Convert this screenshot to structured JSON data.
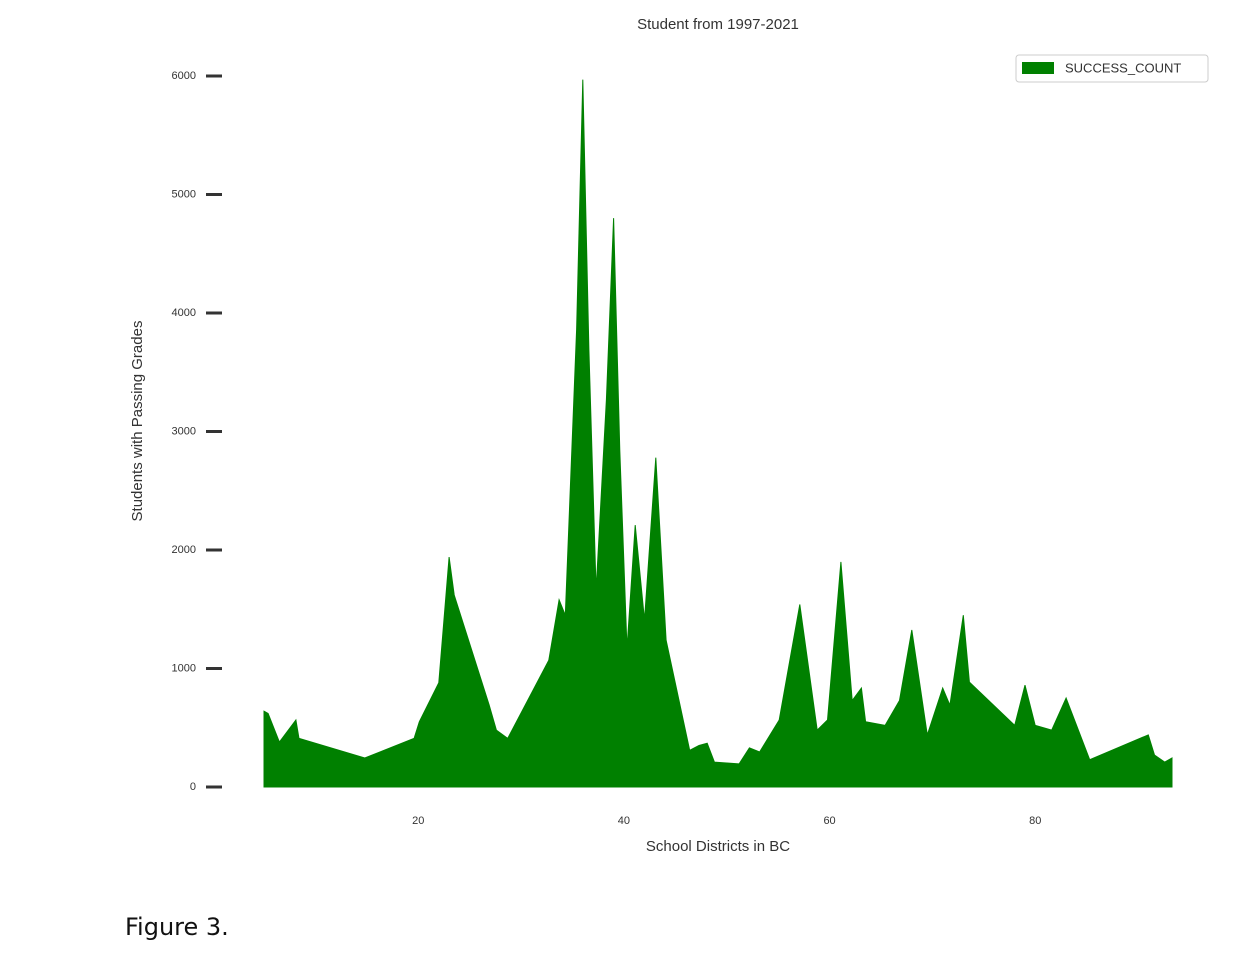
{
  "chart_data": {
    "type": "area",
    "title": "Student from 1997-2021",
    "xlabel": "School Districts in BC",
    "ylabel": "Students with Passing Grades",
    "x": [
      5,
      5.4,
      6.5,
      8.1,
      8.4,
      14.8,
      19.6,
      20.1,
      22,
      23,
      23.5,
      26.9,
      27.6,
      28.7,
      32.7,
      33.7,
      34.3,
      35.4,
      36,
      36.6,
      37.3,
      38.3,
      39,
      39.6,
      40.3,
      41.1,
      42,
      43.1,
      44.1,
      46.4,
      47.3,
      48.1,
      48.8,
      51.2,
      52.2,
      53.2,
      55.1,
      57.1,
      58.8,
      59.8,
      61.1,
      62.2,
      63.1,
      63.5,
      65.4,
      66.8,
      68,
      69.5,
      71,
      71.7,
      73,
      73.6,
      78,
      79,
      80,
      81.6,
      83,
      85.3,
      91,
      91.6,
      92.6,
      93.3
    ],
    "series": [
      {
        "name": "SUCCESS_COUNT",
        "color": "#008000",
        "values": [
          640,
          620,
          380,
          565,
          410,
          245,
          410,
          550,
          880,
          1940,
          1620,
          690,
          480,
          410,
          1070,
          1580,
          1450,
          3860,
          5970,
          3690,
          1660,
          3270,
          4800,
          2840,
          1170,
          2210,
          1410,
          2780,
          1240,
          310,
          350,
          370,
          210,
          195,
          330,
          295,
          565,
          1540,
          480,
          565,
          1900,
          730,
          835,
          550,
          520,
          730,
          1325,
          440,
          835,
          690,
          1450,
          885,
          520,
          860,
          520,
          480,
          750,
          230,
          440,
          270,
          210,
          245
        ]
      }
    ],
    "xlim": [
      5,
      93.3
    ],
    "ylim": [
      0,
      6000
    ],
    "xticks": [
      20,
      40,
      60,
      80
    ],
    "yticks": [
      0,
      1000,
      2000,
      3000,
      4000,
      5000,
      6000
    ],
    "legend": "upper right"
  },
  "caption": "Figure 3."
}
